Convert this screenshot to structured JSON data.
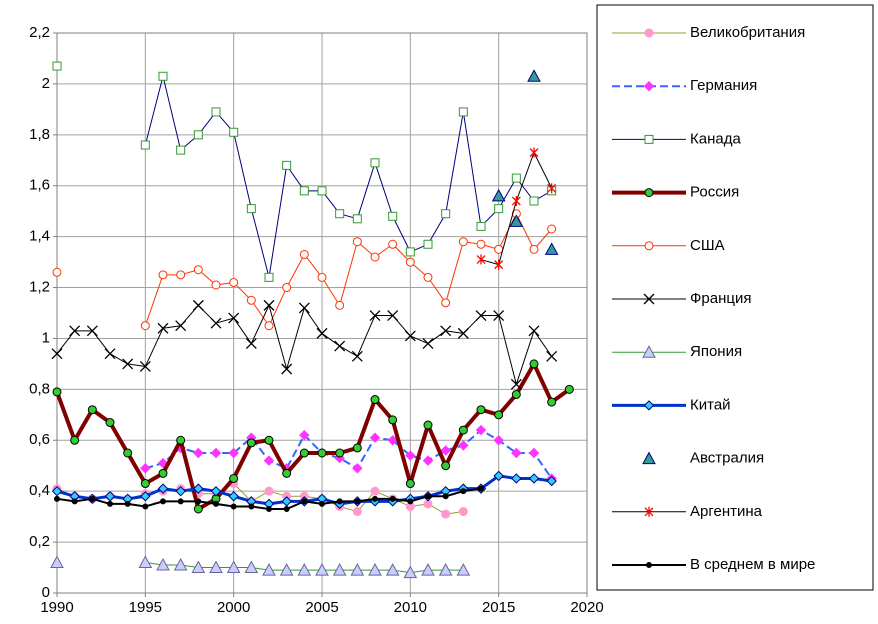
{
  "chart_data": {
    "type": "line",
    "x": [
      1990,
      1991,
      1992,
      1993,
      1994,
      1995,
      1996,
      1997,
      1998,
      1999,
      2000,
      2001,
      2002,
      2003,
      2004,
      2005,
      2006,
      2007,
      2008,
      2009,
      2010,
      2011,
      2012,
      2013,
      2014,
      2015,
      2016,
      2017,
      2018,
      2019
    ],
    "xlim": [
      1990,
      2020
    ],
    "xticks": [
      1990,
      1995,
      2000,
      2005,
      2010,
      2015,
      2020
    ],
    "ylim": [
      0,
      2.2
    ],
    "yticks": [
      0,
      {
        "value": 0.2,
        "label": "0,2"
      },
      {
        "value": 0.4,
        "label": "0,4"
      },
      {
        "value": 0.6,
        "label": "0,6"
      },
      {
        "value": 0.8,
        "label": "0,8"
      },
      1,
      {
        "value": 1.2,
        "label": "1,2"
      },
      {
        "value": 1.4,
        "label": "1,4"
      },
      {
        "value": 1.6,
        "label": "1,6"
      },
      {
        "value": 1.8,
        "label": "1,8"
      },
      2,
      {
        "value": 2.2,
        "label": "2,2"
      }
    ],
    "grid": true,
    "legend": "right",
    "series": [
      {
        "name": "Великобритания",
        "color": "#999933",
        "marker": "circle",
        "marker_color": "#ff99cc",
        "line_width": 1,
        "values": [
          0.41,
          0.38,
          0.37,
          0.38,
          0.37,
          0.39,
          0.4,
          0.41,
          0.39,
          0.39,
          0.43,
          0.36,
          0.4,
          0.38,
          0.38,
          0.37,
          0.34,
          0.32,
          0.4,
          0.37,
          0.34,
          0.35,
          0.31,
          0.32,
          null,
          null,
          null,
          null,
          null,
          null
        ]
      },
      {
        "name": "Германия",
        "color": "#3366ff",
        "marker": "diamond",
        "marker_color": "#ff33ff",
        "line_width": 2,
        "dash": true,
        "values": [
          null,
          null,
          null,
          null,
          null,
          0.49,
          0.51,
          0.57,
          0.55,
          0.55,
          0.55,
          0.61,
          0.52,
          0.49,
          0.62,
          0.55,
          0.53,
          0.49,
          0.61,
          0.6,
          0.54,
          0.52,
          0.56,
          0.58,
          0.64,
          0.6,
          0.55,
          0.55,
          0.45,
          null
        ]
      },
      {
        "name": "Канада",
        "color": "#000080",
        "marker": "square",
        "marker_color": "#ffffff",
        "marker_edge": "#339933",
        "line_width": 1,
        "values": [
          2.07,
          null,
          null,
          null,
          null,
          1.76,
          2.03,
          1.74,
          1.8,
          1.89,
          1.81,
          1.51,
          1.24,
          1.68,
          1.58,
          1.58,
          1.49,
          1.47,
          1.69,
          1.48,
          1.34,
          1.37,
          1.49,
          1.89,
          1.44,
          1.51,
          1.63,
          1.54,
          1.58,
          null
        ]
      },
      {
        "name": "Россия",
        "color": "#800000",
        "marker": "circle",
        "marker_color": "#33cc33",
        "marker_edge": "#000000",
        "line_width": 4,
        "values": [
          0.79,
          0.6,
          0.72,
          0.67,
          0.55,
          0.43,
          0.47,
          0.6,
          0.33,
          0.37,
          0.45,
          0.59,
          0.6,
          0.47,
          0.55,
          0.55,
          0.55,
          0.57,
          0.76,
          0.68,
          0.43,
          0.66,
          0.5,
          0.64,
          0.72,
          0.7,
          0.78,
          0.9,
          0.75,
          0.8
        ]
      },
      {
        "name": "США",
        "color": "#ff3300",
        "marker": "circle",
        "marker_color": "#ffffff",
        "marker_edge": "#ff3300",
        "line_width": 1,
        "values": [
          1.26,
          null,
          null,
          null,
          null,
          1.05,
          1.25,
          1.25,
          1.27,
          1.21,
          1.22,
          1.15,
          1.05,
          1.2,
          1.33,
          1.24,
          1.13,
          1.38,
          1.32,
          1.37,
          1.3,
          1.24,
          1.14,
          1.38,
          1.37,
          1.35,
          1.49,
          1.35,
          1.43,
          null
        ]
      },
      {
        "name": "Франция",
        "color": "#000000",
        "marker": "x",
        "marker_color": "#000000",
        "line_width": 1,
        "values": [
          0.94,
          1.03,
          1.03,
          0.94,
          0.9,
          0.89,
          1.04,
          1.05,
          1.13,
          1.06,
          1.08,
          0.98,
          1.13,
          0.88,
          1.12,
          1.02,
          0.97,
          0.93,
          1.09,
          1.09,
          1.01,
          0.98,
          1.03,
          1.02,
          1.09,
          1.09,
          0.82,
          1.03,
          0.93,
          null
        ]
      },
      {
        "name": "Япония",
        "color": "#339933",
        "marker": "triangle",
        "marker_color": "#ccccff",
        "marker_edge": "#666699",
        "line_width": 1,
        "values": [
          0.12,
          null,
          null,
          null,
          null,
          0.12,
          0.11,
          0.11,
          0.1,
          0.1,
          0.1,
          0.1,
          0.09,
          0.09,
          0.09,
          0.09,
          0.09,
          0.09,
          0.09,
          0.09,
          0.08,
          0.09,
          0.09,
          0.09,
          null,
          null,
          null,
          null,
          null,
          null
        ]
      },
      {
        "name": "Китай",
        "color": "#0033cc",
        "marker": "diamond",
        "marker_color": "#33ccff",
        "marker_edge": "#000080",
        "line_width": 3,
        "values": [
          0.4,
          0.38,
          0.37,
          0.38,
          0.37,
          0.38,
          0.41,
          0.4,
          0.41,
          0.4,
          0.38,
          0.36,
          0.35,
          0.36,
          0.36,
          0.37,
          0.35,
          0.36,
          0.36,
          0.36,
          0.37,
          0.38,
          0.4,
          0.41,
          0.41,
          0.46,
          0.45,
          0.45,
          0.44,
          null
        ]
      },
      {
        "name": "Австралия",
        "color": "#339999",
        "marker": "triangle",
        "marker_color": "#339999",
        "marker_edge": "#000080",
        "line_width": 0,
        "values": [
          null,
          null,
          null,
          null,
          null,
          null,
          null,
          null,
          null,
          null,
          null,
          null,
          null,
          null,
          null,
          null,
          null,
          null,
          null,
          null,
          null,
          null,
          null,
          null,
          null,
          1.56,
          1.46,
          2.03,
          1.35,
          null
        ]
      },
      {
        "name": "Аргентина",
        "color": "#000000",
        "marker": "star",
        "marker_color": "#ff0000",
        "line_width": 1,
        "values": [
          null,
          null,
          null,
          null,
          null,
          null,
          null,
          null,
          null,
          null,
          null,
          null,
          null,
          null,
          null,
          null,
          null,
          null,
          null,
          null,
          null,
          null,
          null,
          null,
          1.31,
          1.29,
          1.54,
          1.73,
          1.59,
          null
        ]
      },
      {
        "name": "В среднем в мире",
        "color": "#000000",
        "marker": "dot",
        "marker_color": "#000000",
        "line_width": 2,
        "values": [
          0.37,
          0.36,
          0.37,
          0.35,
          0.35,
          0.34,
          0.36,
          0.36,
          0.36,
          0.35,
          0.34,
          0.34,
          0.33,
          0.33,
          0.36,
          0.35,
          0.36,
          0.36,
          0.37,
          0.37,
          0.36,
          0.38,
          0.38,
          0.4,
          0.41,
          null,
          null,
          null,
          null,
          null
        ]
      }
    ]
  }
}
